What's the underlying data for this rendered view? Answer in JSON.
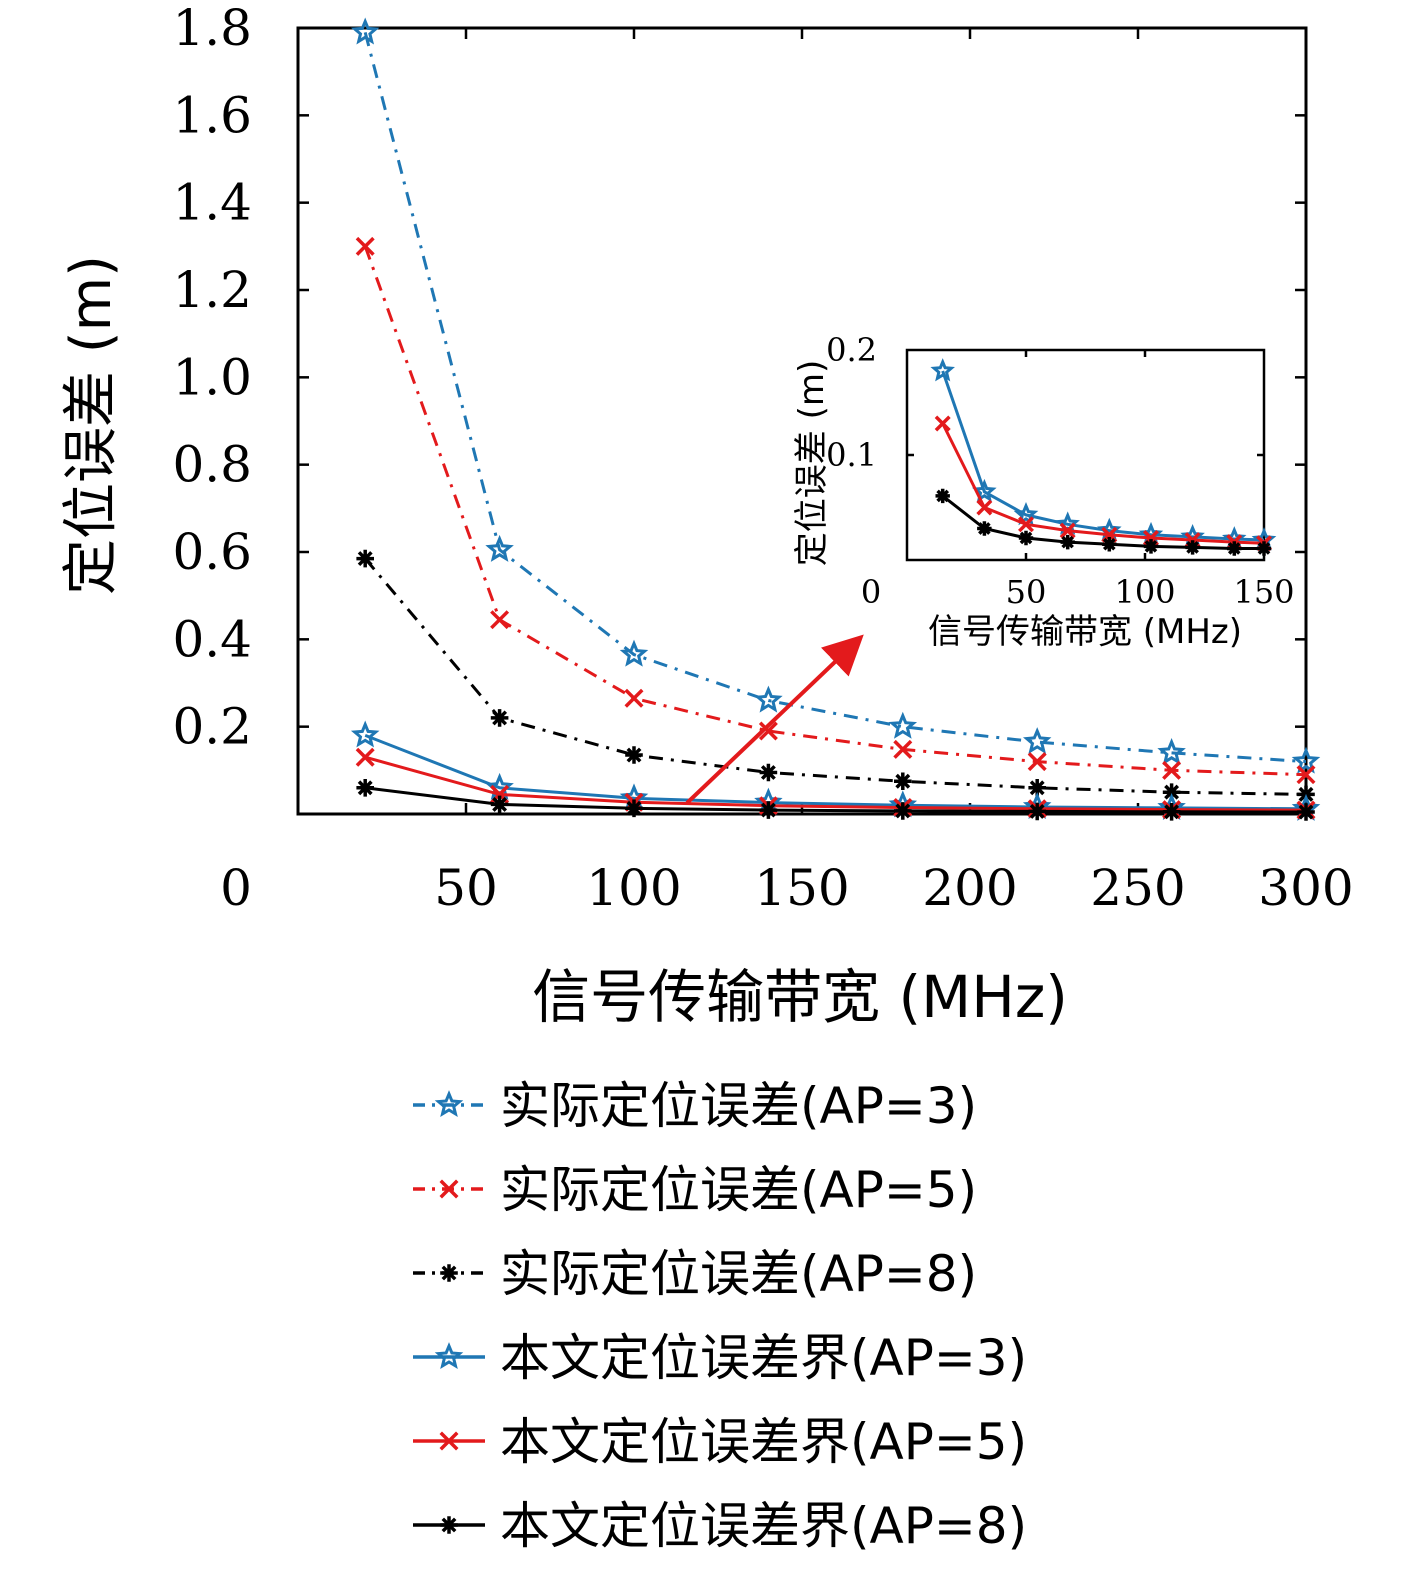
{
  "chart_data": [
    {
      "type": "line",
      "xlabel": "信号传输带宽 (MHz)",
      "ylabel": "定位误差 (m)",
      "xlim": [
        0,
        300
      ],
      "ylim": [
        0,
        1.8
      ],
      "x_ticks": [
        0,
        50,
        100,
        150,
        200,
        250,
        300
      ],
      "y_ticks": [
        0.2,
        0.4,
        0.6,
        0.8,
        1.0,
        1.2,
        1.4,
        1.6,
        1.8
      ],
      "x_tick_labels": [
        "0",
        "50",
        "100",
        "150",
        "200",
        "250",
        "300"
      ],
      "y_tick_labels": [
        "0.2",
        "0.4",
        "0.6",
        "0.8",
        "1.0",
        "1.2",
        "1.4",
        "1.6",
        "1.8"
      ],
      "grid": false,
      "legend_position": "below",
      "x": [
        20,
        60,
        100,
        140,
        180,
        220,
        260,
        300
      ],
      "series": [
        {
          "name": "实际定位误差(AP=3)",
          "style": "dashdot",
          "marker": "star",
          "color": "#1f77b4",
          "values": [
            1.79,
            0.605,
            0.365,
            0.26,
            0.2,
            0.165,
            0.14,
            0.12
          ]
        },
        {
          "name": "实际定位误差(AP=5)",
          "style": "dashdot",
          "marker": "x",
          "color": "#e31a1c",
          "values": [
            1.3,
            0.445,
            0.265,
            0.19,
            0.148,
            0.12,
            0.1,
            0.09
          ]
        },
        {
          "name": "实际定位误差(AP=8)",
          "style": "dashdot",
          "marker": "asterisk",
          "color": "#000000",
          "values": [
            0.585,
            0.22,
            0.135,
            0.095,
            0.075,
            0.06,
            0.05,
            0.045
          ]
        },
        {
          "name": "本文定位误差界(AP=3)",
          "style": "solid",
          "marker": "star",
          "color": "#1f77b4",
          "values": [
            0.18,
            0.06,
            0.036,
            0.026,
            0.02,
            0.016,
            0.014,
            0.012
          ]
        },
        {
          "name": "本文定位误差界(AP=5)",
          "style": "solid",
          "marker": "x",
          "color": "#e31a1c",
          "values": [
            0.13,
            0.045,
            0.027,
            0.019,
            0.015,
            0.012,
            0.01,
            0.009
          ]
        },
        {
          "name": "本文定位误差界(AP=8)",
          "style": "solid",
          "marker": "asterisk",
          "color": "#000000",
          "values": [
            0.06,
            0.022,
            0.013,
            0.009,
            0.007,
            0.006,
            0.005,
            0.0045
          ]
        }
      ]
    },
    {
      "type": "line",
      "inset": true,
      "xlabel": "信号传输带宽 (MHz)",
      "ylabel": "定位误差 (m)",
      "xlim": [
        0,
        150
      ],
      "ylim": [
        0,
        0.2
      ],
      "x_ticks": [
        0,
        50,
        100,
        150
      ],
      "y_ticks": [
        0.1,
        0.2
      ],
      "x_tick_labels": [
        "0",
        "50",
        "100",
        "150"
      ],
      "y_tick_labels": [
        "0.1",
        "0.2"
      ],
      "grid": false,
      "x": [
        15,
        32.5,
        50,
        67.5,
        85,
        102.5,
        120,
        137.5,
        150
      ],
      "series": [
        {
          "style": "solid",
          "marker": "star",
          "color": "#1f77b4",
          "values": [
            0.18,
            0.065,
            0.043,
            0.034,
            0.028,
            0.024,
            0.022,
            0.02,
            0.019
          ]
        },
        {
          "style": "solid",
          "marker": "x",
          "color": "#e31a1c",
          "values": [
            0.13,
            0.05,
            0.034,
            0.028,
            0.024,
            0.021,
            0.019,
            0.017,
            0.016
          ]
        },
        {
          "style": "solid",
          "marker": "asterisk",
          "color": "#000000",
          "values": [
            0.061,
            0.03,
            0.021,
            0.017,
            0.015,
            0.013,
            0.012,
            0.011,
            0.011
          ]
        }
      ]
    }
  ]
}
